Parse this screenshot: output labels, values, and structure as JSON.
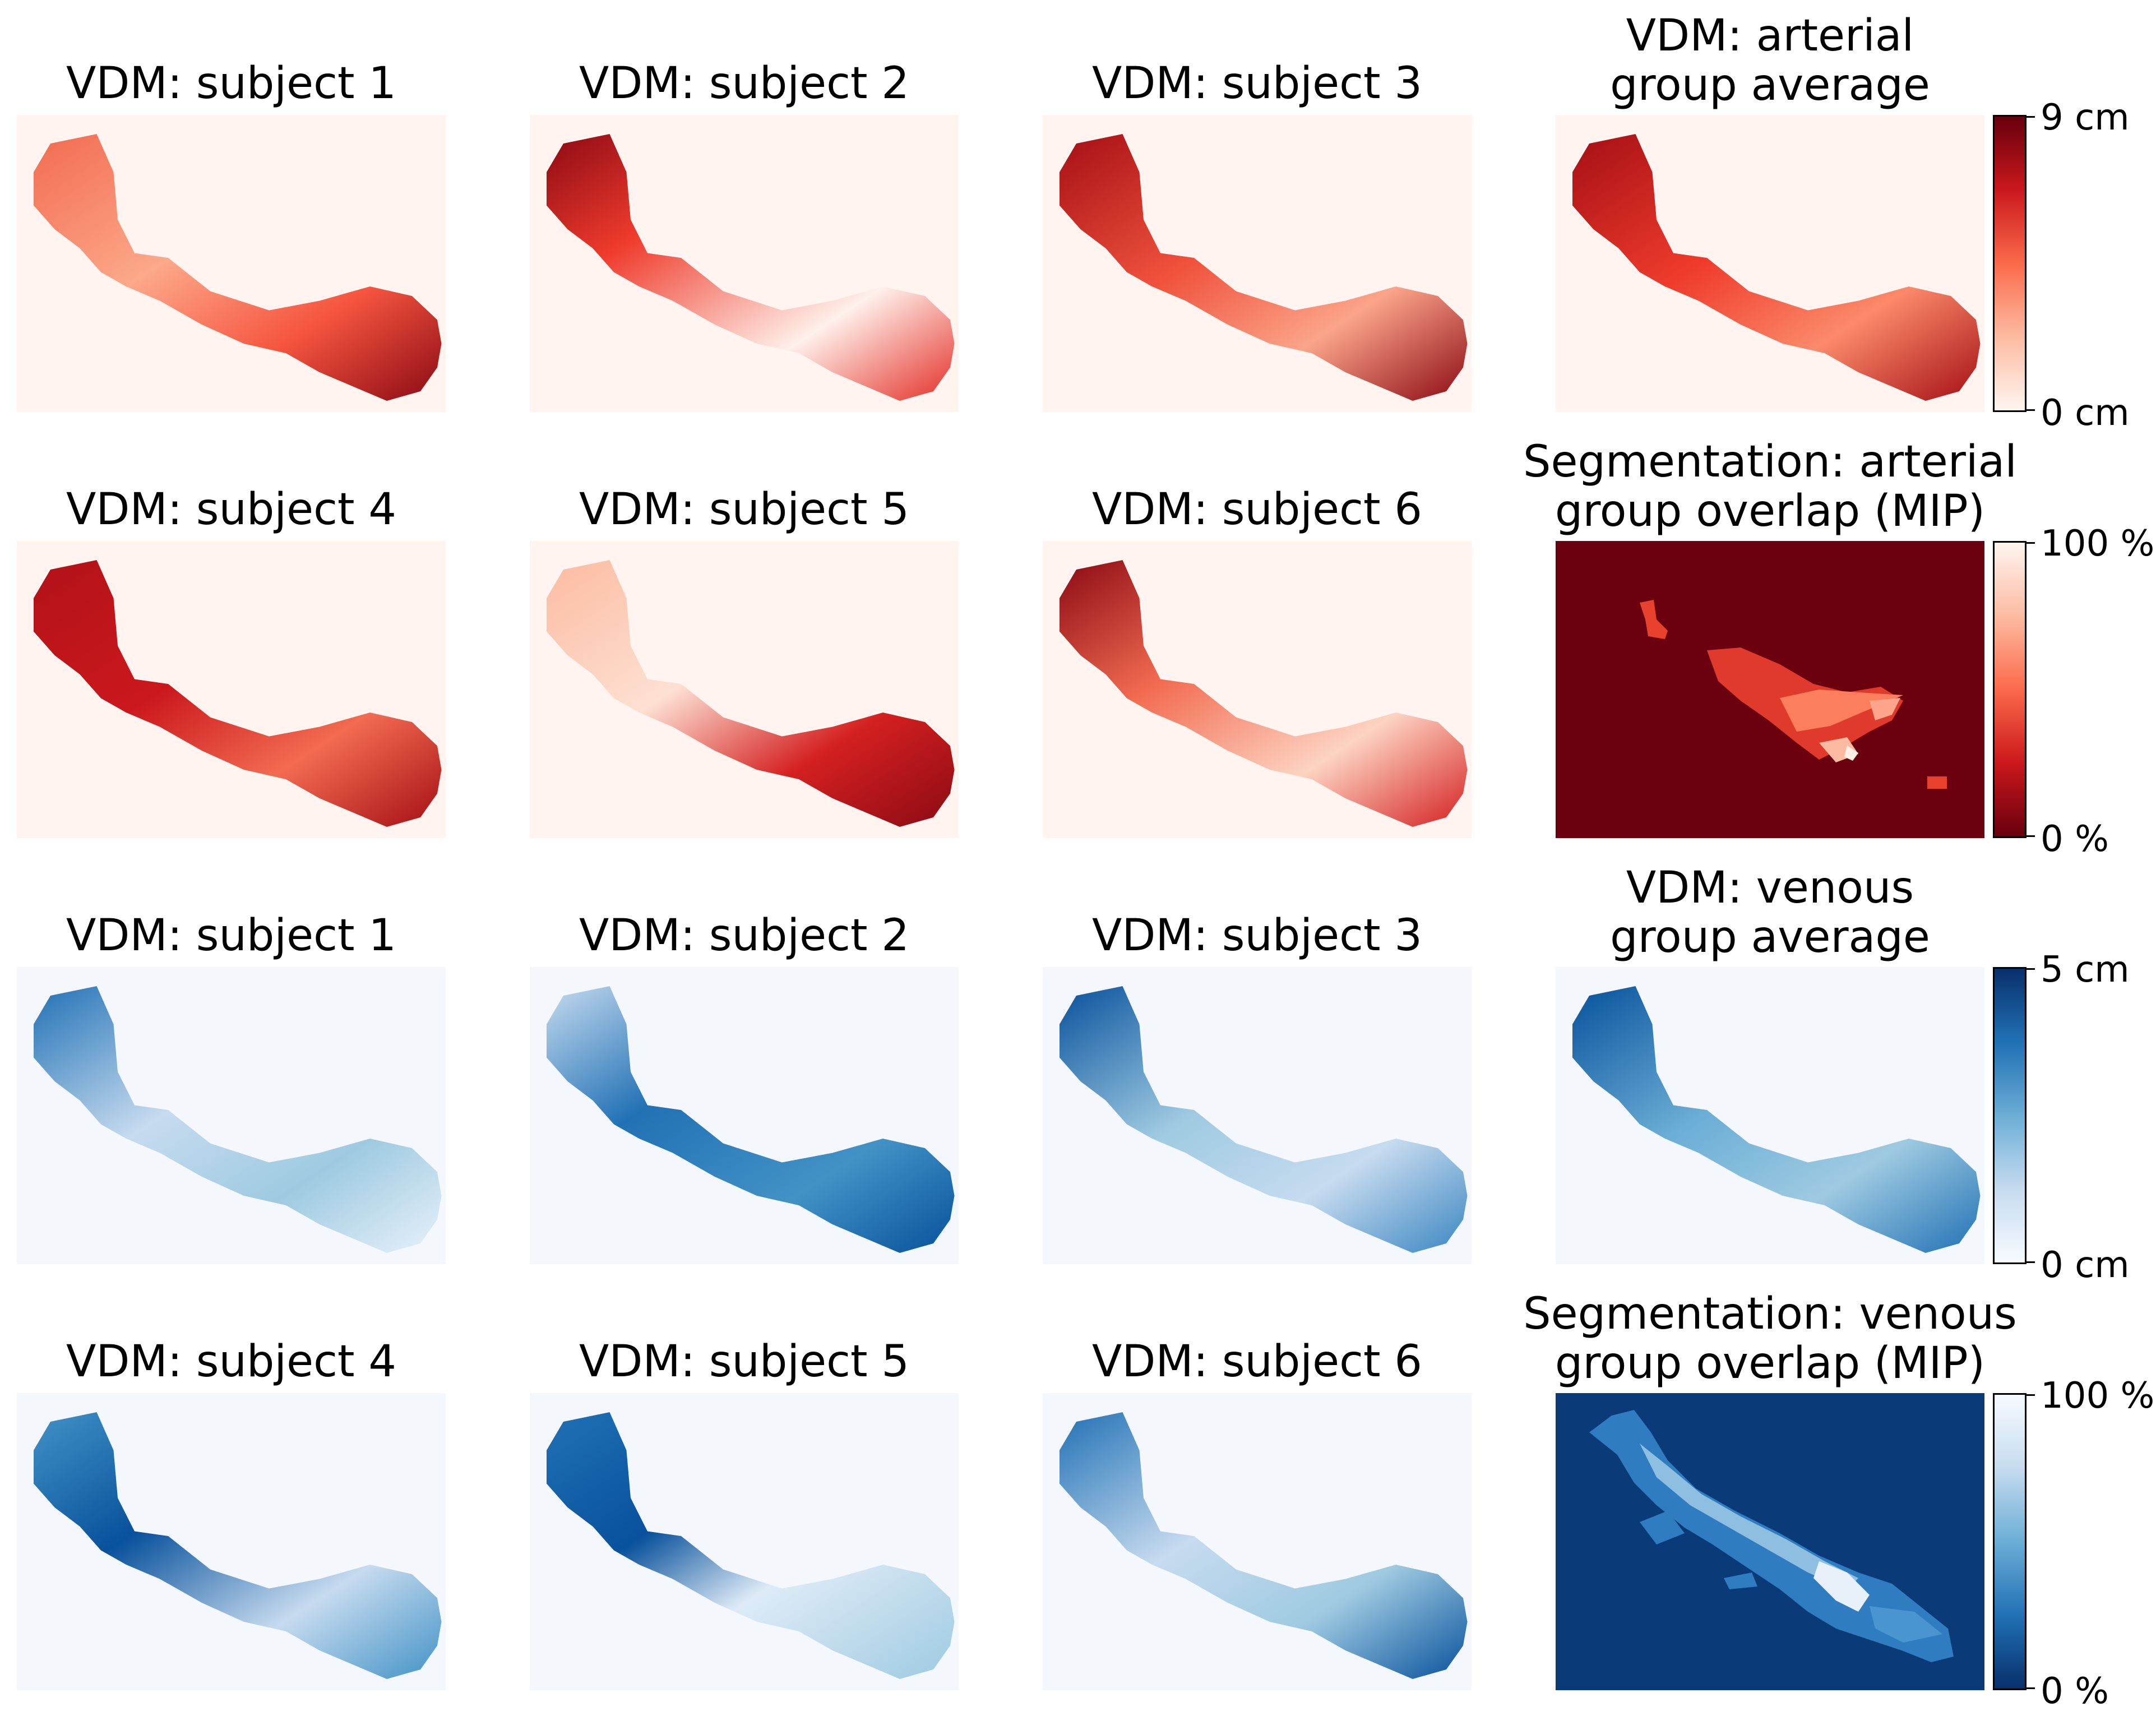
{
  "panels": {
    "r1c1": {
      "title": "VDM: subject 1"
    },
    "r1c2": {
      "title": "VDM: subject 2"
    },
    "r1c3": {
      "title": "VDM: subject 3"
    },
    "r1c4": {
      "title_line1": "VDM: arterial",
      "title_line2": "group average"
    },
    "r2c1": {
      "title": "VDM: subject 4"
    },
    "r2c2": {
      "title": "VDM: subject 5"
    },
    "r2c3": {
      "title": "VDM: subject 6"
    },
    "r2c4": {
      "title_line1": "Segmentation: arterial",
      "title_line2": "group overlap (MIP)"
    },
    "r3c1": {
      "title": "VDM: subject 1"
    },
    "r3c2": {
      "title": "VDM: subject 2"
    },
    "r3c3": {
      "title": "VDM: subject 3"
    },
    "r3c4": {
      "title_line1": "VDM: venous",
      "title_line2": "group average"
    },
    "r4c1": {
      "title": "VDM: subject 4"
    },
    "r4c2": {
      "title": "VDM: subject 5"
    },
    "r4c3": {
      "title": "VDM: subject 6"
    },
    "r4c4": {
      "title_line1": "Segmentation: venous",
      "title_line2": "group overlap (MIP)"
    }
  },
  "colorbars": {
    "arterial_vdm": {
      "max_label": "9 cm",
      "min_label": "0 cm",
      "colormap": "Reds"
    },
    "arterial_seg": {
      "max_label": "100 %",
      "min_label": "0 %",
      "colormap": "Reds_r"
    },
    "venous_vdm": {
      "max_label": "5 cm",
      "min_label": "0 cm",
      "colormap": "Blues"
    },
    "venous_seg": {
      "max_label": "100 %",
      "min_label": "0 %",
      "colormap": "Blues_r"
    }
  },
  "colors": {
    "red_bg": "#fff4ef",
    "red_dark": "#67000d",
    "red_mid": "#ef3b2c",
    "red_light": "#fcbba1",
    "blue_bg": "#f4f8fd",
    "blue_dark": "#08306b",
    "blue_mid": "#2171b5",
    "blue_light": "#c6dbef"
  }
}
